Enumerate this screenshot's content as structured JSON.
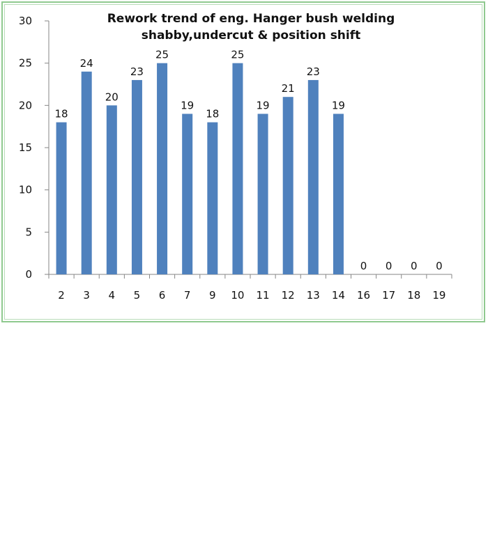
{
  "chart_data": {
    "type": "bar",
    "title_lines": [
      "Rework trend of eng. Hanger bush welding",
      "shabby,undercut & position shift"
    ],
    "categories": [
      "2",
      "3",
      "4",
      "5",
      "6",
      "7",
      "9",
      "10",
      "11",
      "12",
      "13",
      "14",
      "16",
      "17",
      "18",
      "19"
    ],
    "values": [
      18,
      24,
      20,
      23,
      25,
      19,
      18,
      25,
      19,
      21,
      23,
      19,
      0,
      0,
      0,
      0
    ],
    "ylim": [
      0,
      30
    ],
    "yticks": [
      0,
      5,
      10,
      15,
      20,
      25,
      30
    ],
    "xlabel": "",
    "ylabel": "",
    "legend": "none",
    "grid": false,
    "bar_color": "#4f81bd",
    "frame_color": "#8fc98f"
  }
}
